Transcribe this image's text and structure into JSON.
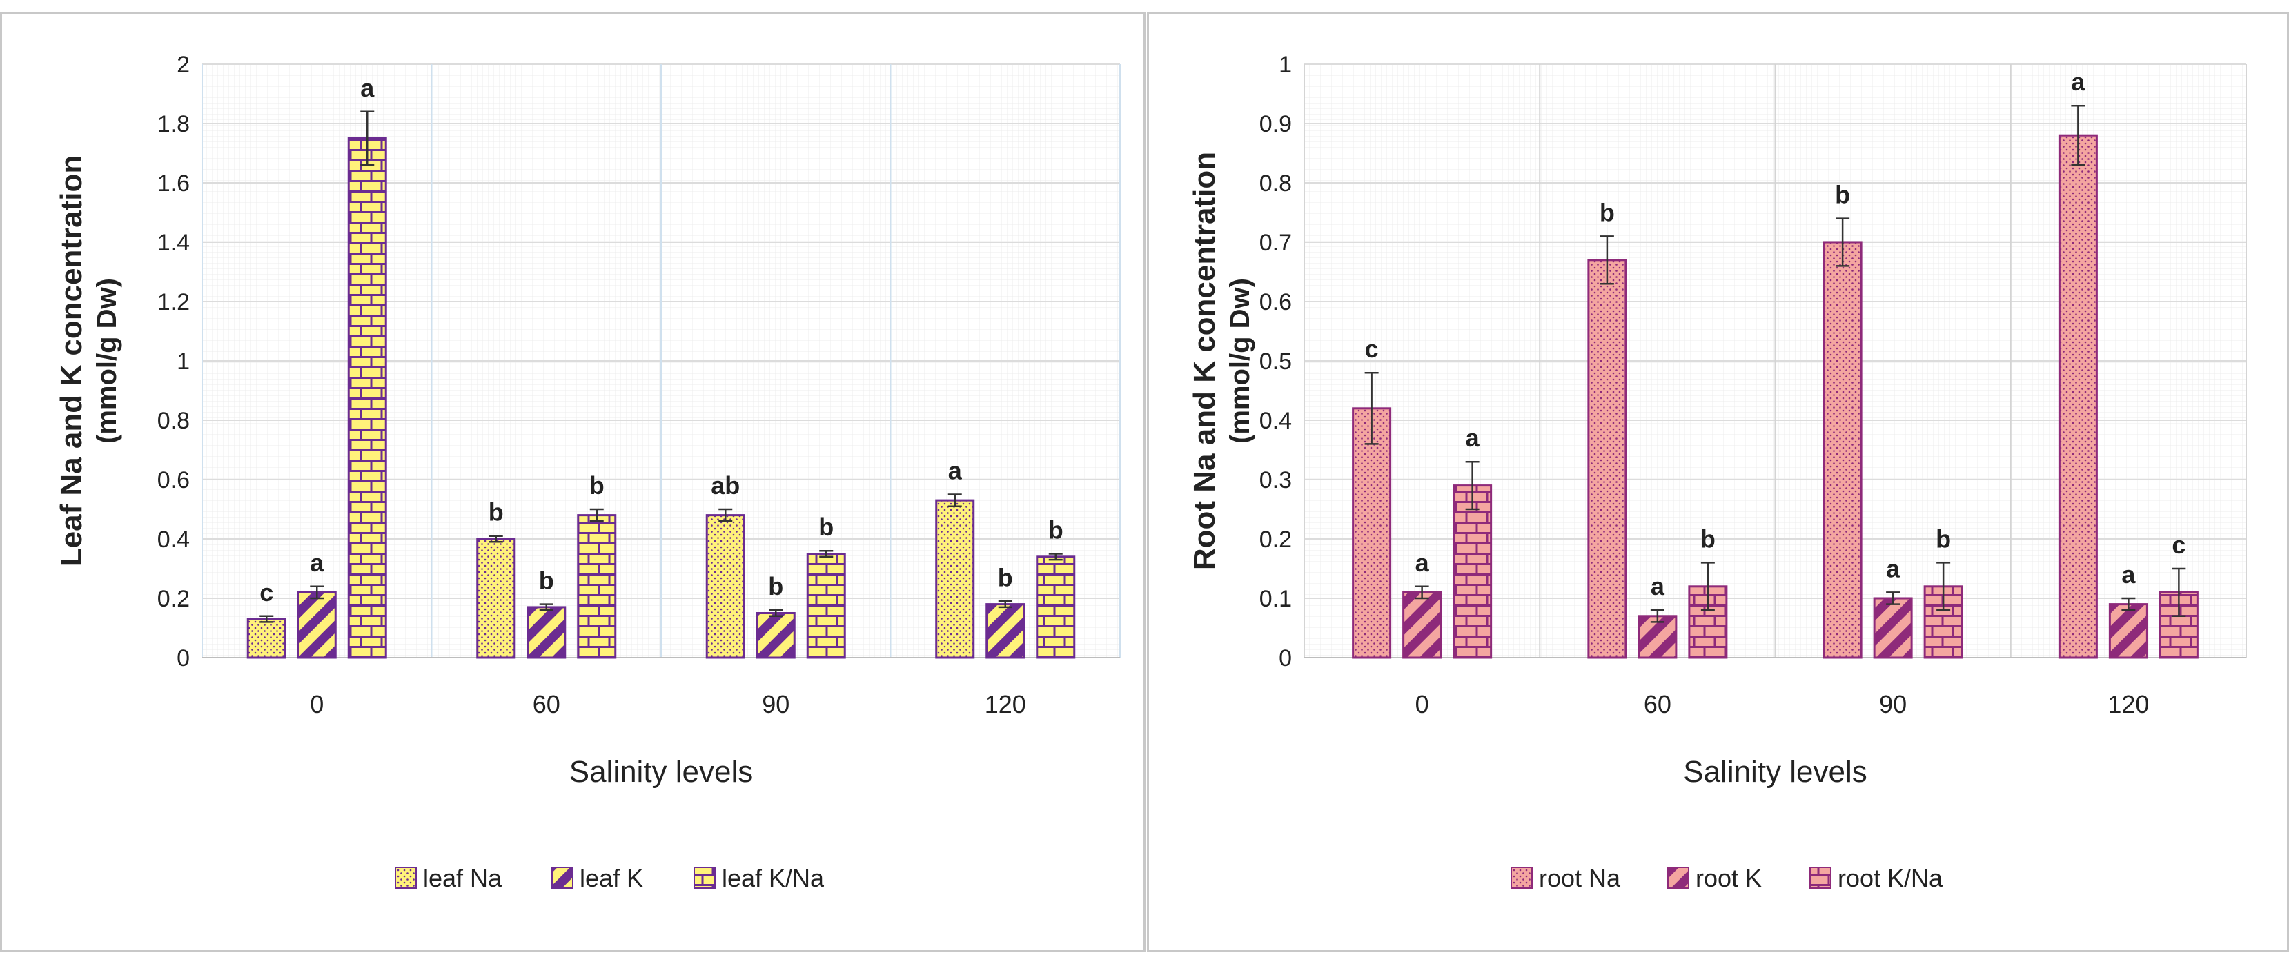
{
  "chart_data": [
    {
      "type": "bar",
      "title": "",
      "xlabel": "Salinity levels",
      "ylabel_line1": "Leaf Na and K concentration",
      "ylabel_line2": "(mmol/g  Dw)",
      "categories": [
        "0",
        "60",
        "90",
        "120"
      ],
      "ylim": [
        0,
        2
      ],
      "ytick_step": 0.2,
      "yticks": [
        "0",
        "0.2",
        "0.4",
        "0.6",
        "0.8",
        "1",
        "1.2",
        "1.4",
        "1.6",
        "1.8",
        "2"
      ],
      "legend_position": "bottom-center",
      "fill_color": "#FFF27A",
      "stroke_color": "#6B2C91",
      "series": [
        {
          "name": "leaf Na",
          "pattern": "dots",
          "values": [
            0.13,
            0.4,
            0.48,
            0.53
          ],
          "errors": [
            0.01,
            0.01,
            0.02,
            0.02
          ],
          "letters": [
            "c",
            "b",
            "ab",
            "a"
          ]
        },
        {
          "name": "leaf K",
          "pattern": "stripes",
          "values": [
            0.22,
            0.17,
            0.15,
            0.18
          ],
          "errors": [
            0.02,
            0.01,
            0.01,
            0.01
          ],
          "letters": [
            "a",
            "b",
            "b",
            "b"
          ]
        },
        {
          "name": "leaf K/Na",
          "pattern": "bricks",
          "values": [
            1.75,
            0.48,
            0.35,
            0.34
          ],
          "errors": [
            0.09,
            0.02,
            0.01,
            0.01
          ],
          "letters": [
            "a",
            "b",
            "b",
            "b"
          ]
        }
      ]
    },
    {
      "type": "bar",
      "title": "",
      "xlabel": "Salinity levels",
      "ylabel_line1": "Root Na and K concentration",
      "ylabel_line2": "(mmol/g  Dw)",
      "categories": [
        "0",
        "60",
        "90",
        "120"
      ],
      "ylim": [
        0,
        1
      ],
      "ytick_step": 0.1,
      "yticks": [
        "0",
        "0.1",
        "0.2",
        "0.3",
        "0.4",
        "0.5",
        "0.6",
        "0.7",
        "0.8",
        "0.9",
        "1"
      ],
      "legend_position": "bottom-center",
      "fill_color": "#F4A6A0",
      "stroke_color": "#8E2A7A",
      "series": [
        {
          "name": "root Na",
          "pattern": "dots",
          "values": [
            0.42,
            0.67,
            0.7,
            0.88
          ],
          "errors": [
            0.06,
            0.04,
            0.04,
            0.05
          ],
          "letters": [
            "c",
            "b",
            "b",
            "a"
          ]
        },
        {
          "name": "root K",
          "pattern": "stripes",
          "values": [
            0.11,
            0.07,
            0.1,
            0.09
          ],
          "errors": [
            0.01,
            0.01,
            0.01,
            0.01
          ],
          "letters": [
            "a",
            "a",
            "a",
            "a"
          ]
        },
        {
          "name": "root K/Na",
          "pattern": "bricks",
          "values": [
            0.29,
            0.12,
            0.12,
            0.11
          ],
          "errors": [
            0.04,
            0.04,
            0.04,
            0.04
          ],
          "letters": [
            "a",
            "b",
            "b",
            "c"
          ]
        }
      ]
    }
  ]
}
